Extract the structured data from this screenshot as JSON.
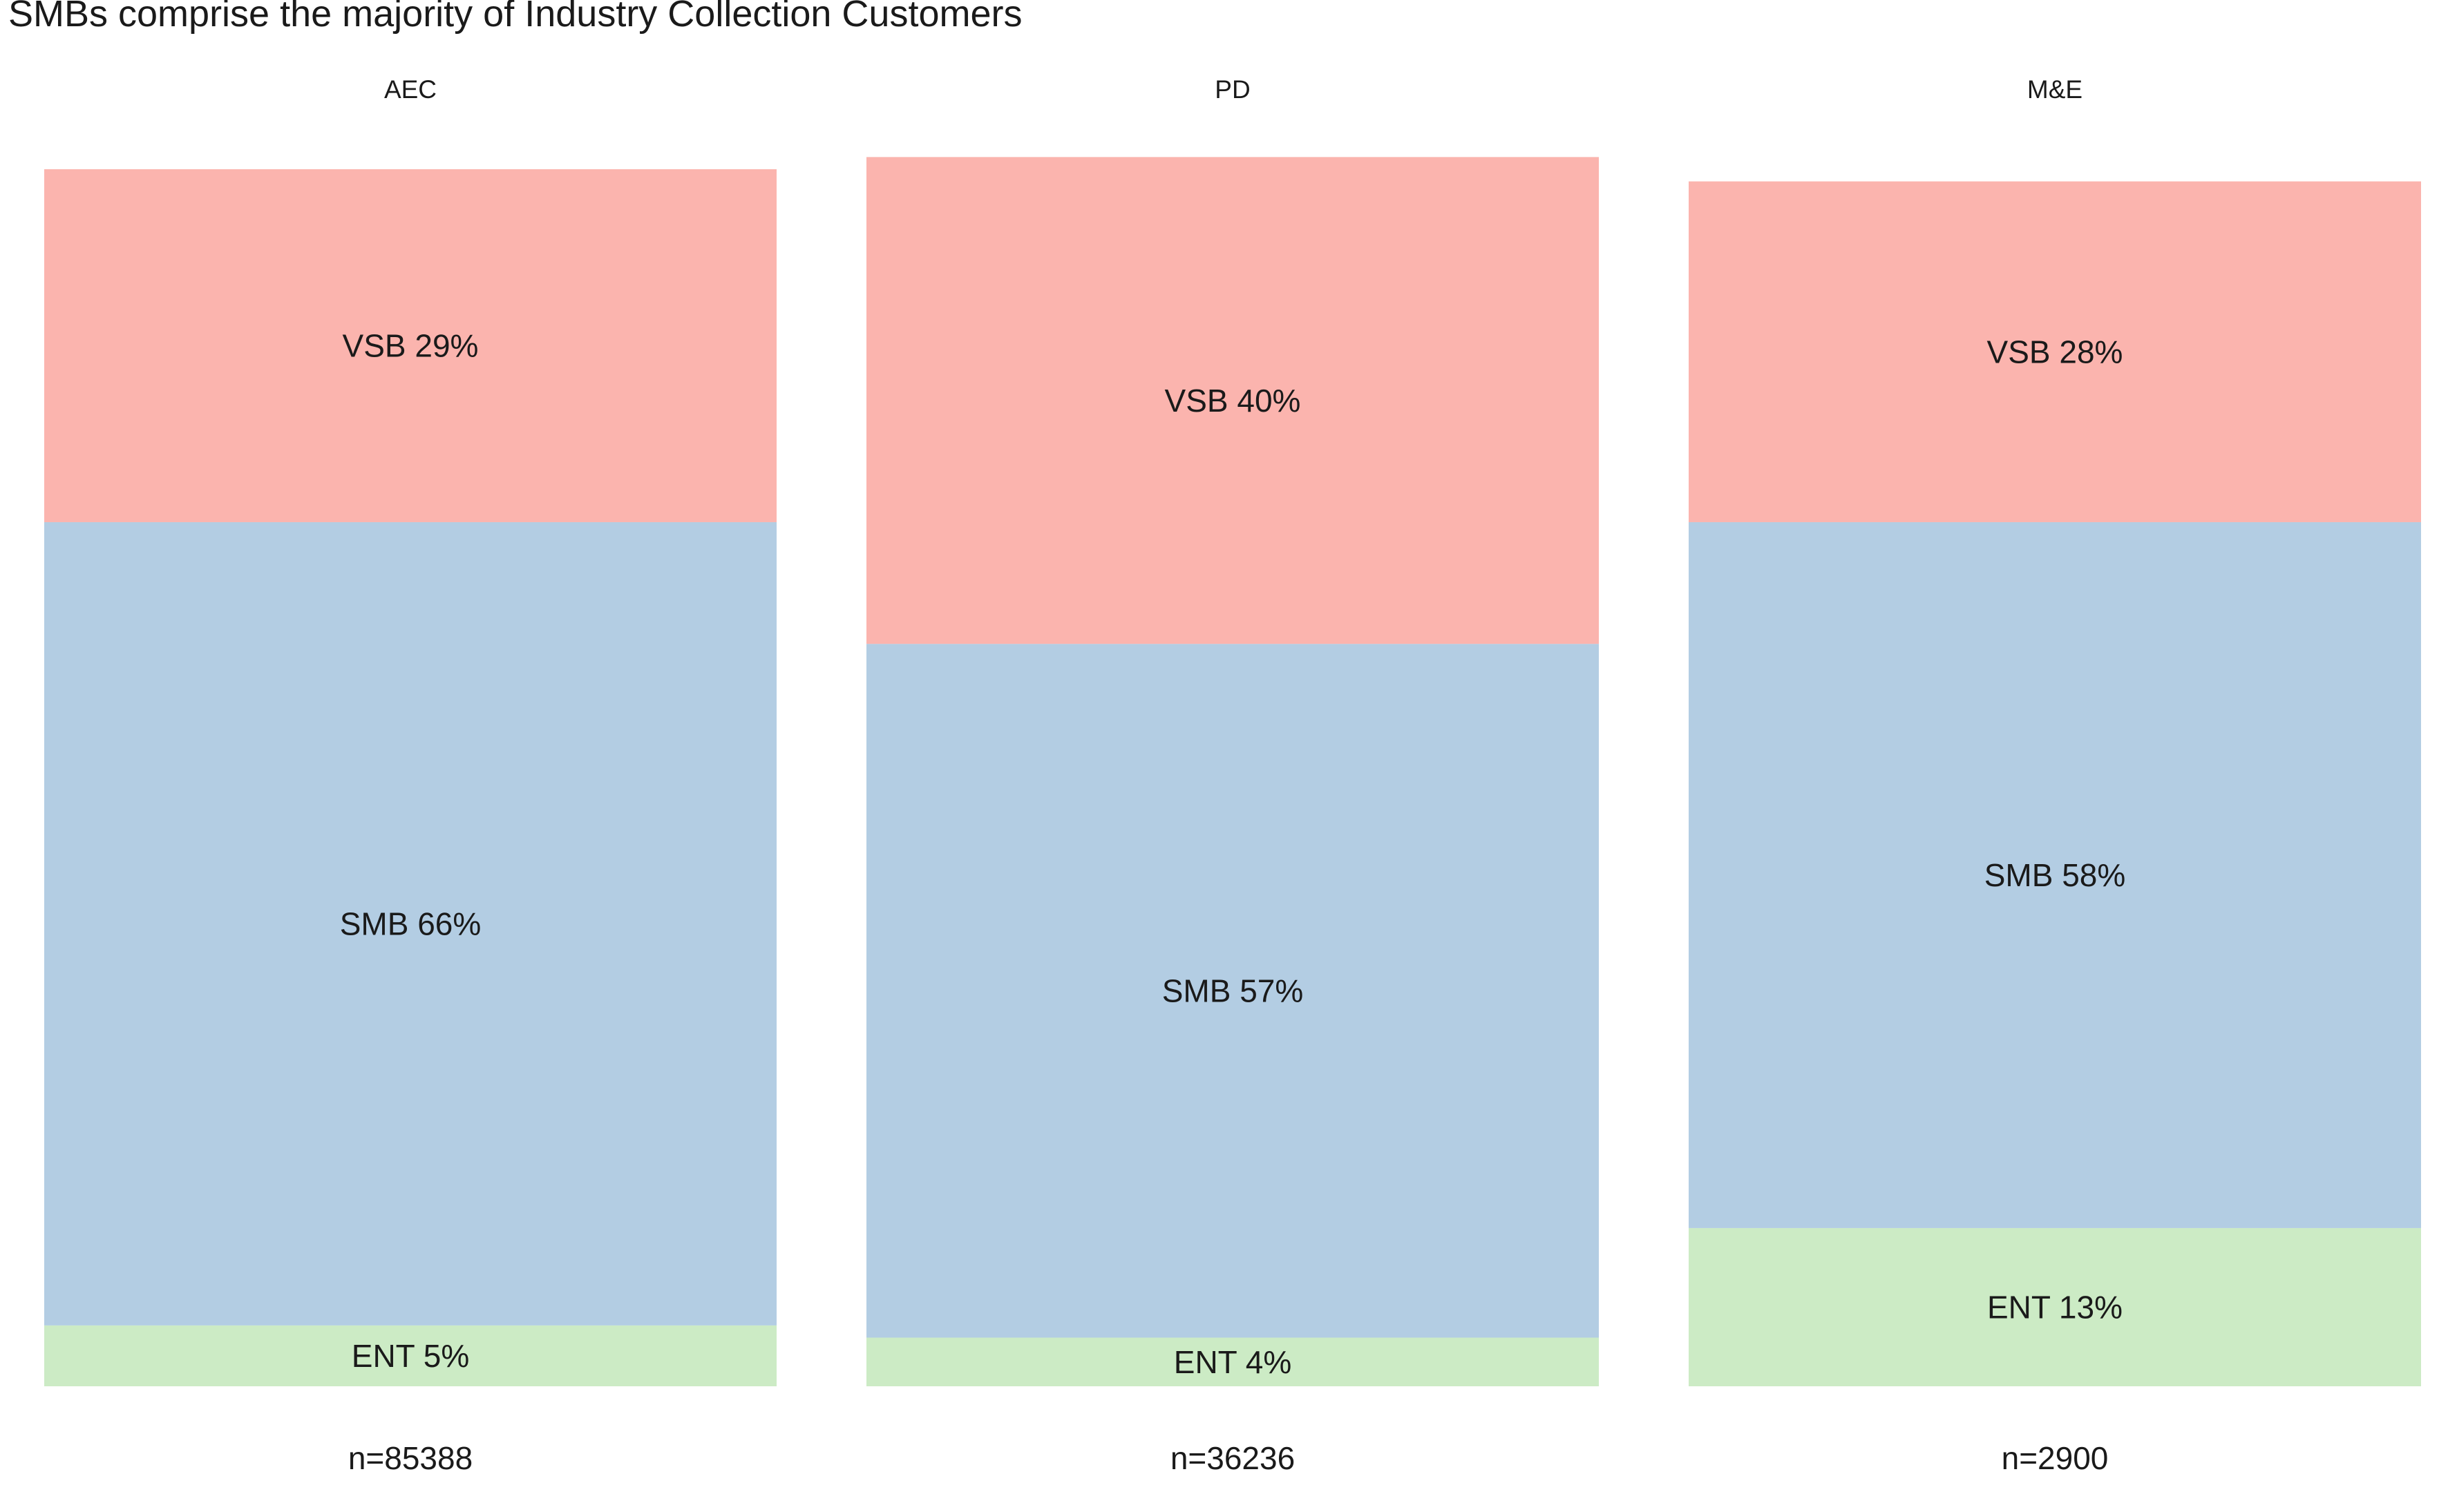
{
  "chart_data": {
    "type": "bar",
    "stacked": true,
    "title": "SMBs comprise the majority of Industry Collection Customers",
    "categories": [
      "AEC",
      "PD",
      "M&E"
    ],
    "sample_sizes": [
      "n=85388",
      "n=36236",
      "n=2900"
    ],
    "series": [
      {
        "name": "ENT",
        "color": "#ccebc5",
        "values": [
          5,
          4,
          13
        ],
        "labels": [
          "ENT 5%",
          "ENT 4%",
          "ENT 13%"
        ]
      },
      {
        "name": "SMB",
        "color": "#b3cde3",
        "values": [
          66,
          57,
          58
        ],
        "labels": [
          "SMB 66%",
          "SMB 57%",
          "SMB 58%"
        ]
      },
      {
        "name": "VSB",
        "color": "#fbb4ae",
        "values": [
          29,
          40,
          28
        ],
        "labels": [
          "VSB 29%",
          "VSB 40%",
          "VSB 28%"
        ]
      }
    ],
    "ylim": [
      0,
      100
    ],
    "grid": false,
    "axes_visible": false,
    "legend": "none"
  }
}
